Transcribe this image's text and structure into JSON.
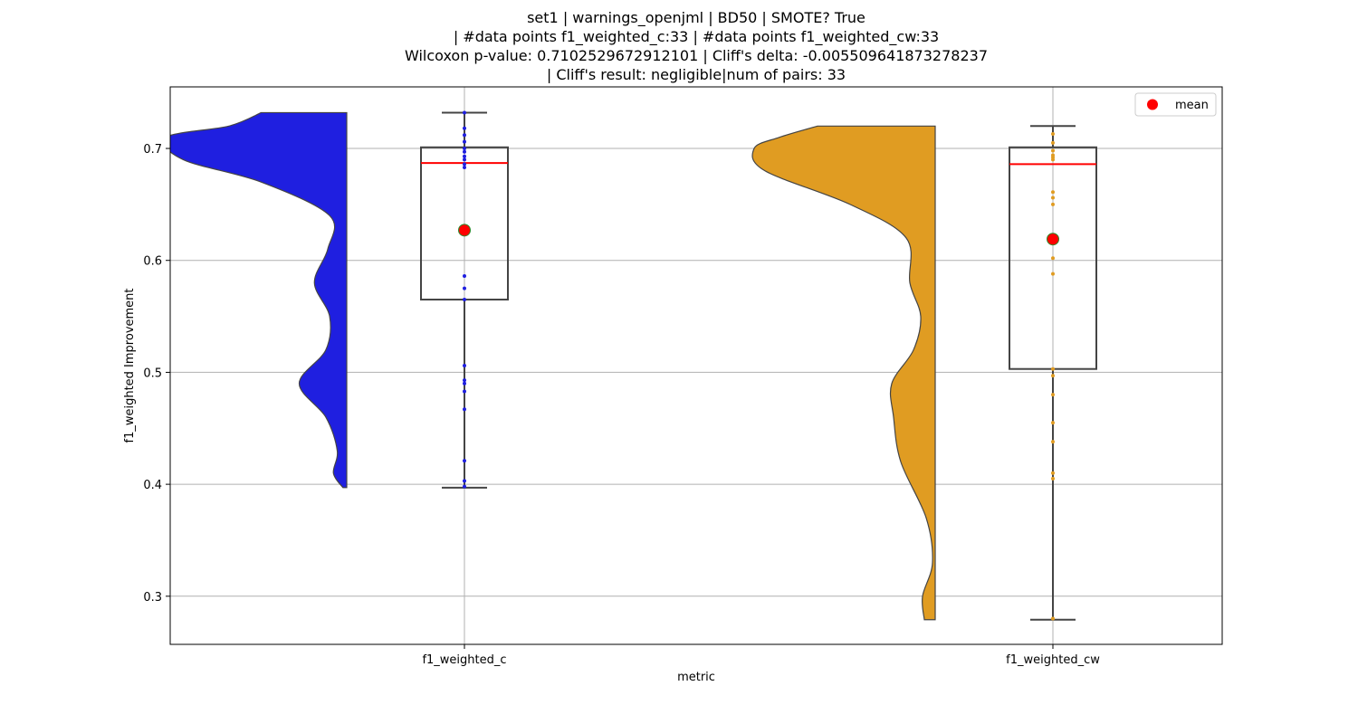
{
  "chart_data": {
    "type": "violin",
    "title_lines": [
      "set1 | warnings_openjml | BD50 | SMOTE? True",
      "| #data points f1_weighted_c:33 | #data points f1_weighted_cw:33",
      "Wilcoxon p-value: 0.7102529672912101 | Cliff's delta: -0.005509641873278237",
      "| Cliff's result: negligible|num of pairs: 33"
    ],
    "xlabel": "metric",
    "ylabel": "f1_weighted Improvement",
    "categories": [
      "f1_weighted_c",
      "f1_weighted_cw"
    ],
    "ylim": [
      0.257,
      0.755
    ],
    "yticks": [
      0.3,
      0.4,
      0.5,
      0.6,
      0.7
    ],
    "ytick_labels": [
      "0.3",
      "0.4",
      "0.5",
      "0.6",
      "0.7"
    ],
    "grid": true,
    "legend": {
      "position": "top-right",
      "entries": [
        "mean"
      ]
    },
    "colors": {
      "f1_weighted_c": "#1f1fe0",
      "f1_weighted_cw": "#e09c22",
      "median": "#ff0000",
      "mean_marker": "#ff0000",
      "mean_edge": "#2e8b2e",
      "box_edge": "#444444"
    },
    "series": [
      {
        "category": "f1_weighted_c",
        "min": 0.397,
        "q1": 0.565,
        "median": 0.687,
        "q3": 0.701,
        "max": 0.732,
        "mean": 0.627,
        "density": [
          {
            "y": 0.397,
            "w": 0.02
          },
          {
            "y": 0.41,
            "w": 0.07
          },
          {
            "y": 0.43,
            "w": 0.05
          },
          {
            "y": 0.46,
            "w": 0.11
          },
          {
            "y": 0.49,
            "w": 0.25
          },
          {
            "y": 0.52,
            "w": 0.11
          },
          {
            "y": 0.55,
            "w": 0.09
          },
          {
            "y": 0.58,
            "w": 0.17
          },
          {
            "y": 0.61,
            "w": 0.1
          },
          {
            "y": 0.64,
            "w": 0.09
          },
          {
            "y": 0.67,
            "w": 0.45
          },
          {
            "y": 0.69,
            "w": 0.86
          },
          {
            "y": 0.71,
            "w": 0.95
          },
          {
            "y": 0.72,
            "w": 0.62
          },
          {
            "y": 0.732,
            "w": 0.45
          }
        ],
        "points": [
          0.732,
          0.718,
          0.712,
          0.706,
          0.7,
          0.697,
          0.693,
          0.69,
          0.686,
          0.683,
          0.586,
          0.575,
          0.565,
          0.506,
          0.493,
          0.49,
          0.483,
          0.467,
          0.421,
          0.403,
          0.398
        ]
      },
      {
        "category": "f1_weighted_cw",
        "min": 0.279,
        "q1": 0.503,
        "median": 0.686,
        "q3": 0.701,
        "max": 0.72,
        "mean": 0.619,
        "density": [
          {
            "y": 0.279,
            "w": 0.06
          },
          {
            "y": 0.3,
            "w": 0.07
          },
          {
            "y": 0.33,
            "w": 0.015
          },
          {
            "y": 0.37,
            "w": 0.05
          },
          {
            "y": 0.42,
            "w": 0.19
          },
          {
            "y": 0.46,
            "w": 0.23
          },
          {
            "y": 0.49,
            "w": 0.24
          },
          {
            "y": 0.52,
            "w": 0.12
          },
          {
            "y": 0.55,
            "w": 0.08
          },
          {
            "y": 0.58,
            "w": 0.14
          },
          {
            "y": 0.62,
            "w": 0.16
          },
          {
            "y": 0.65,
            "w": 0.47
          },
          {
            "y": 0.68,
            "w": 0.94
          },
          {
            "y": 0.7,
            "w": 1.0
          },
          {
            "y": 0.71,
            "w": 0.86
          },
          {
            "y": 0.72,
            "w": 0.65
          }
        ],
        "points": [
          0.713,
          0.705,
          0.698,
          0.694,
          0.692,
          0.69,
          0.661,
          0.656,
          0.65,
          0.602,
          0.588,
          0.503,
          0.497,
          0.48,
          0.455,
          0.438,
          0.41,
          0.405,
          0.28
        ]
      }
    ]
  }
}
